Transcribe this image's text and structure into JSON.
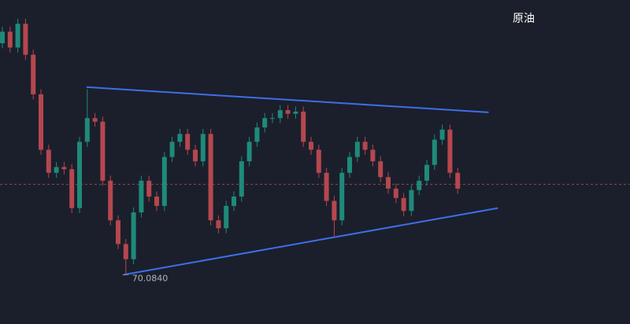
{
  "chart_data": {
    "type": "candlestick",
    "title": "原油",
    "ylim": [
      69.4,
      73.9
    ],
    "up_color": "#1f8a7a",
    "down_color": "#b5474f",
    "open": [
      73.3,
      73.46,
      73.24,
      73.57,
      73.14,
      72.59,
      71.82,
      71.5,
      71.58,
      71.55,
      71.01,
      71.93,
      72.26,
      72.21,
      71.39,
      70.84,
      70.51,
      70.3,
      70.95,
      71.39,
      71.17,
      71.04,
      71.72,
      71.93,
      72.04,
      71.82,
      71.66,
      72.04,
      70.84,
      70.73,
      71.04,
      71.17,
      71.66,
      71.93,
      72.13,
      72.26,
      72.26,
      72.37,
      72.32,
      72.35,
      71.93,
      71.82,
      71.5,
      71.11,
      70.84,
      71.5,
      71.72,
      71.93,
      71.82,
      71.66,
      71.44,
      71.28,
      71.15,
      70.97,
      71.26,
      71.39,
      71.61,
      71.96,
      72.1,
      71.5
    ],
    "high": [
      73.53,
      73.53,
      73.64,
      73.64,
      73.21,
      72.66,
      71.89,
      71.65,
      71.65,
      71.62,
      72.0,
      72.66,
      72.33,
      72.28,
      71.46,
      70.91,
      70.58,
      71.02,
      71.46,
      71.46,
      71.24,
      71.79,
      72.0,
      72.11,
      72.11,
      71.89,
      72.11,
      72.11,
      70.91,
      71.11,
      71.24,
      71.73,
      72.0,
      72.2,
      72.33,
      72.33,
      72.44,
      72.44,
      72.42,
      72.42,
      72.0,
      71.89,
      71.57,
      71.18,
      71.57,
      71.79,
      72.0,
      72.0,
      71.89,
      71.73,
      71.51,
      71.35,
      71.22,
      71.33,
      71.46,
      71.68,
      72.03,
      72.17,
      72.17,
      71.57
    ],
    "low": [
      73.23,
      73.17,
      73.17,
      73.07,
      72.52,
      71.75,
      71.43,
      71.43,
      71.48,
      70.94,
      70.94,
      71.86,
      72.14,
      71.32,
      70.77,
      70.44,
      70.084,
      70.23,
      70.88,
      71.1,
      70.97,
      70.97,
      71.65,
      71.86,
      71.75,
      71.59,
      71.59,
      70.77,
      70.66,
      70.66,
      70.97,
      71.1,
      71.59,
      71.86,
      72.06,
      72.19,
      72.19,
      72.25,
      72.25,
      71.86,
      71.75,
      71.43,
      71.04,
      70.62,
      70.77,
      71.43,
      71.65,
      71.75,
      71.59,
      71.37,
      71.21,
      71.08,
      70.9,
      70.9,
      71.19,
      71.32,
      71.54,
      71.89,
      71.43,
      71.21
    ],
    "close": [
      73.46,
      73.24,
      73.57,
      73.14,
      72.59,
      71.82,
      71.5,
      71.58,
      71.55,
      71.01,
      71.93,
      72.26,
      72.21,
      71.39,
      70.84,
      70.51,
      70.3,
      70.95,
      71.39,
      71.17,
      71.04,
      71.72,
      71.93,
      72.04,
      71.82,
      71.66,
      72.04,
      70.84,
      70.73,
      71.04,
      71.17,
      71.66,
      71.93,
      72.13,
      72.26,
      72.26,
      72.37,
      72.32,
      72.35,
      71.93,
      71.82,
      71.5,
      71.11,
      70.84,
      71.5,
      71.72,
      71.93,
      71.82,
      71.66,
      71.44,
      71.28,
      71.15,
      70.97,
      71.26,
      71.39,
      71.61,
      71.96,
      72.1,
      71.5,
      71.28
    ],
    "low_annotation": {
      "value": 70.084,
      "label": "70.0840"
    },
    "price_line": 71.34,
    "trendlines": [
      {
        "color": "#3d6fe8",
        "x": [
          10.9,
          63.0
        ],
        "y": [
          72.69,
          72.34
        ]
      },
      {
        "color": "#3d6fe8",
        "x": [
          15.7,
          64.2
        ],
        "y": [
          70.084,
          71.01
        ]
      }
    ]
  }
}
